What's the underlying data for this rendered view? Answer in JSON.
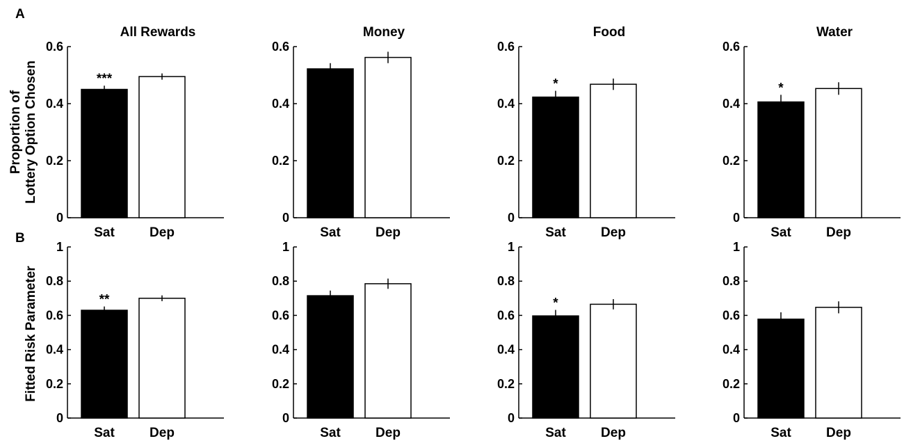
{
  "panel_labels": [
    "A",
    "B"
  ],
  "row_ylabels": [
    [
      "Proportion of",
      "Lottery Option Chosen"
    ],
    [
      "Fitted Risk Parameter"
    ]
  ],
  "colors": {
    "sat": "#000000",
    "dep": "#ffffff",
    "stroke": "#000000"
  },
  "chart_data": [
    {
      "type": "bar",
      "panel": "A",
      "title": "All Rewards",
      "categories": [
        "Sat",
        "Dep"
      ],
      "values": [
        0.45,
        0.495
      ],
      "errors": [
        0.013,
        0.011
      ],
      "significance": [
        "***",
        ""
      ],
      "ylim": [
        0,
        0.6
      ],
      "yticks": [
        0,
        0.2,
        0.4,
        0.6
      ],
      "ytick_labels": [
        "0",
        "0.2",
        "0.4",
        "0.6"
      ]
    },
    {
      "type": "bar",
      "panel": "A",
      "title": "Money",
      "categories": [
        "Sat",
        "Dep"
      ],
      "values": [
        0.522,
        0.562
      ],
      "errors": [
        0.02,
        0.02
      ],
      "significance": [
        "",
        ""
      ],
      "ylim": [
        0,
        0.6
      ],
      "yticks": [
        0,
        0.2,
        0.4,
        0.6
      ],
      "ytick_labels": [
        "0",
        "0.2",
        "0.4",
        "0.6"
      ]
    },
    {
      "type": "bar",
      "panel": "A",
      "title": "Food",
      "categories": [
        "Sat",
        "Dep"
      ],
      "values": [
        0.423,
        0.468
      ],
      "errors": [
        0.022,
        0.02
      ],
      "significance": [
        "*",
        ""
      ],
      "ylim": [
        0,
        0.6
      ],
      "yticks": [
        0,
        0.2,
        0.4,
        0.6
      ],
      "ytick_labels": [
        "0",
        "0.2",
        "0.4",
        "0.6"
      ]
    },
    {
      "type": "bar",
      "panel": "A",
      "title": "Water",
      "categories": [
        "Sat",
        "Dep"
      ],
      "values": [
        0.406,
        0.453
      ],
      "errors": [
        0.025,
        0.022
      ],
      "significance": [
        "*",
        ""
      ],
      "ylim": [
        0,
        0.6
      ],
      "yticks": [
        0,
        0.2,
        0.4,
        0.6
      ],
      "ytick_labels": [
        "0",
        "0.2",
        "0.4",
        "0.6"
      ]
    },
    {
      "type": "bar",
      "panel": "B",
      "title": "",
      "categories": [
        "Sat",
        "Dep"
      ],
      "values": [
        0.63,
        0.7
      ],
      "errors": [
        0.022,
        0.017
      ],
      "significance": [
        "**",
        ""
      ],
      "ylim": [
        0,
        1
      ],
      "yticks": [
        0,
        0.2,
        0.4,
        0.6,
        0.8,
        1
      ],
      "ytick_labels": [
        "0",
        "0.2",
        "0.4",
        "0.6",
        "0.8",
        "1"
      ]
    },
    {
      "type": "bar",
      "panel": "B",
      "title": "",
      "categories": [
        "Sat",
        "Dep"
      ],
      "values": [
        0.715,
        0.785
      ],
      "errors": [
        0.03,
        0.03
      ],
      "significance": [
        "",
        ""
      ],
      "ylim": [
        0,
        1
      ],
      "yticks": [
        0,
        0.2,
        0.4,
        0.6,
        0.8,
        1
      ],
      "ytick_labels": [
        "0",
        "0.2",
        "0.4",
        "0.6",
        "0.8",
        "1"
      ]
    },
    {
      "type": "bar",
      "panel": "B",
      "title": "",
      "categories": [
        "Sat",
        "Dep"
      ],
      "values": [
        0.597,
        0.665
      ],
      "errors": [
        0.035,
        0.03
      ],
      "significance": [
        "*",
        ""
      ],
      "ylim": [
        0,
        1
      ],
      "yticks": [
        0,
        0.2,
        0.4,
        0.6,
        0.8,
        1
      ],
      "ytick_labels": [
        "0",
        "0.2",
        "0.4",
        "0.6",
        "0.8",
        "1"
      ]
    },
    {
      "type": "bar",
      "panel": "B",
      "title": "",
      "categories": [
        "Sat",
        "Dep"
      ],
      "values": [
        0.578,
        0.647
      ],
      "errors": [
        0.04,
        0.035
      ],
      "significance": [
        "",
        ""
      ],
      "ylim": [
        0,
        1
      ],
      "yticks": [
        0,
        0.2,
        0.4,
        0.6,
        0.8,
        1
      ],
      "ytick_labels": [
        "0",
        "0.2",
        "0.4",
        "0.6",
        "0.8",
        "1"
      ]
    }
  ]
}
